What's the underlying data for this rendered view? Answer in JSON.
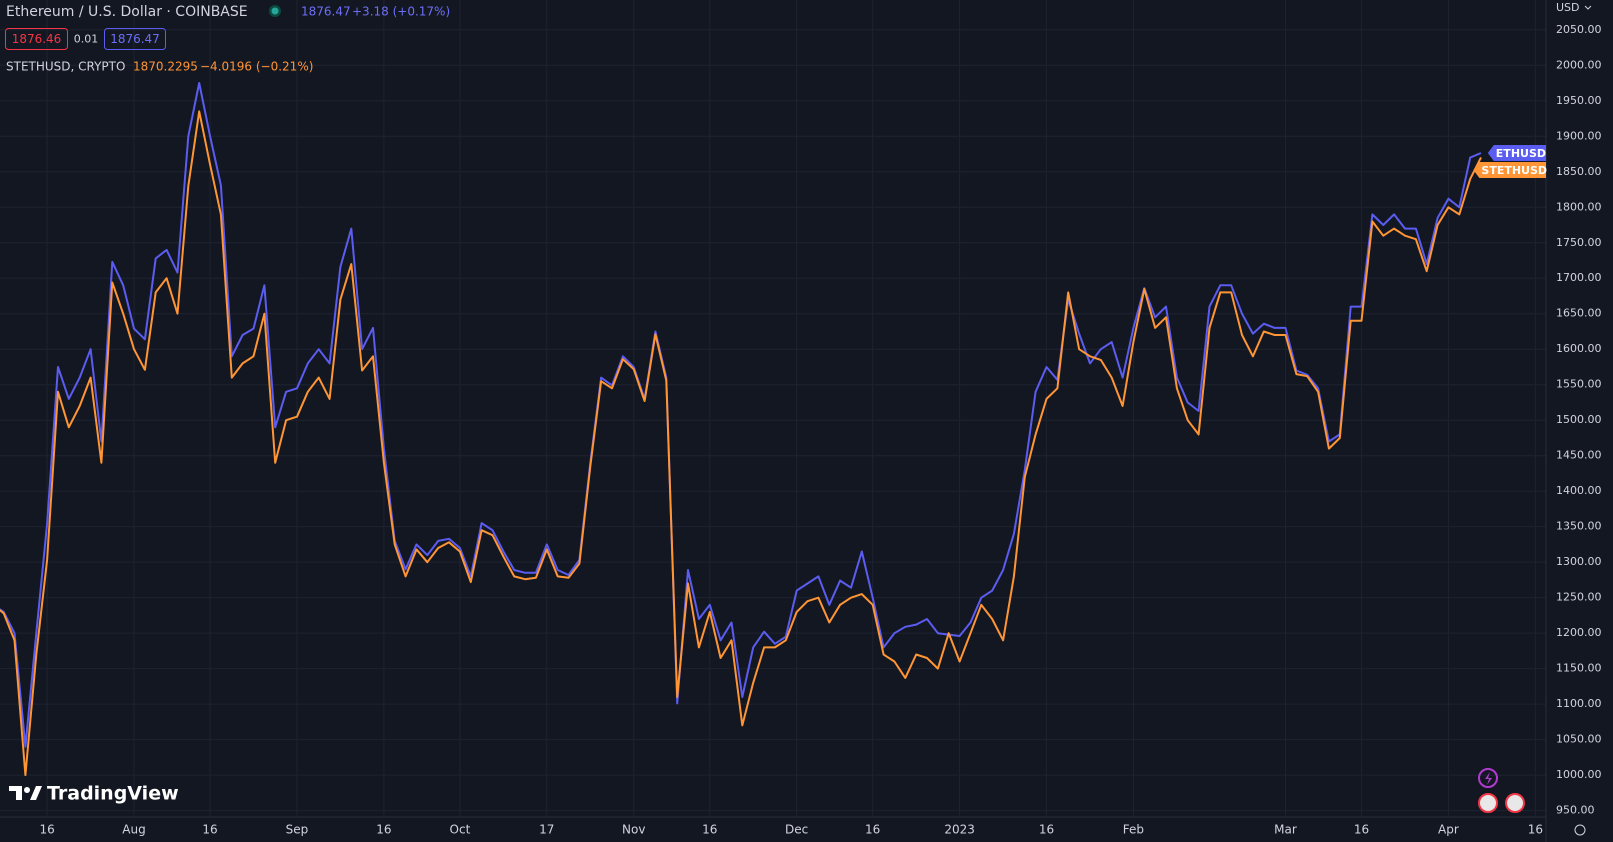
{
  "chart_data": {
    "type": "line",
    "title": "Ethereum / U.S. Dollar · COINBASE",
    "header": {
      "price": "1876.47",
      "change": "+3.18 (+0.17%)",
      "bid": "1876.46",
      "spread": "0.01",
      "ask": "1876.47"
    },
    "compare": {
      "label": "STETHUSD, CRYPTO",
      "price": "1870.2295",
      "change": "−4.0196 (−0.21%)"
    },
    "currency": "USD",
    "brand": "TradingView",
    "categories": [
      null,
      null,
      null,
      null,
      null,
      "16",
      null,
      null,
      null,
      null,
      null,
      null,
      null,
      "Aug",
      null,
      null,
      null,
      null,
      null,
      null,
      "16",
      null,
      null,
      null,
      null,
      null,
      null,
      null,
      "Sep",
      null,
      null,
      null,
      null,
      null,
      null,
      null,
      "16",
      null,
      null,
      null,
      null,
      null,
      null,
      "Oct",
      null,
      null,
      null,
      null,
      null,
      null,
      null,
      "17",
      null,
      null,
      null,
      null,
      null,
      null,
      null,
      "Nov",
      null,
      null,
      null,
      null,
      null,
      null,
      "16",
      null,
      null,
      null,
      null,
      null,
      null,
      null,
      "Dec",
      null,
      null,
      null,
      null,
      null,
      null,
      "16",
      null,
      null,
      null,
      null,
      null,
      null,
      null,
      "2023",
      null,
      null,
      null,
      null,
      null,
      null,
      null,
      "16",
      null,
      null,
      null,
      null,
      null,
      null,
      null,
      "Feb",
      null,
      null,
      null,
      null,
      null,
      null,
      null,
      null,
      null,
      null,
      null,
      null,
      null,
      "Mar",
      null,
      null,
      null,
      null,
      null,
      null,
      "16",
      null,
      null,
      null,
      null,
      null,
      null,
      null,
      "Apr",
      null,
      null,
      null,
      null,
      null,
      null,
      null,
      "16"
    ],
    "series": [
      {
        "name": "ETHUSD",
        "color": "#5b5cf0",
        "values": [
          1240,
          1230,
          1200,
          1040,
          1200,
          1354,
          1575,
          1530,
          1560,
          1600,
          1470,
          1723,
          1690,
          1629,
          1614,
          1728,
          1740,
          1708,
          1900,
          1975,
          1900,
          1831,
          1590,
          1620,
          1629,
          1690,
          1490,
          1540,
          1545,
          1580,
          1600,
          1580,
          1716,
          1770,
          1600,
          1630,
          1460,
          1330,
          1290,
          1325,
          1310,
          1330,
          1333,
          1320,
          1280,
          1355,
          1345,
          1315,
          1289,
          1285,
          1285,
          1325,
          1289,
          1282,
          1303,
          1440,
          1560,
          1549,
          1590,
          1575,
          1530,
          1625,
          1560,
          1101,
          1289,
          1220,
          1240,
          1190,
          1215,
          1110,
          1180,
          1202,
          1185,
          1195,
          1260,
          1270,
          1280,
          1240,
          1274,
          1264,
          1315,
          1250,
          1180,
          1200,
          1209,
          1212,
          1220,
          1200,
          1198,
          1196,
          1215,
          1250,
          1260,
          1289,
          1340,
          1430,
          1540,
          1575,
          1557,
          1670,
          1622,
          1580,
          1600,
          1610,
          1560,
          1630,
          1686,
          1645,
          1660,
          1560,
          1525,
          1513,
          1660,
          1690,
          1690,
          1650,
          1622,
          1636,
          1630,
          1630,
          1570,
          1564,
          1545,
          1470,
          1480,
          1660,
          1660,
          1790,
          1775,
          1790,
          1770,
          1770,
          1720,
          1785,
          1812,
          1800,
          1870,
          1876.47,
          null,
          null,
          null,
          null,
          null
        ]
      },
      {
        "name": "STETHUSD",
        "color": "#ff9534",
        "values": [
          1240,
          1228,
          1190,
          1000,
          1170,
          1303,
          1540,
          1490,
          1520,
          1560,
          1440,
          1694,
          1650,
          1600,
          1571,
          1680,
          1700,
          1650,
          1830,
          1935,
          1860,
          1790,
          1560,
          1580,
          1590,
          1650,
          1440,
          1500,
          1505,
          1540,
          1560,
          1530,
          1670,
          1720,
          1570,
          1590,
          1440,
          1325,
          1280,
          1318,
          1300,
          1320,
          1328,
          1315,
          1272,
          1345,
          1338,
          1308,
          1280,
          1276,
          1278,
          1318,
          1280,
          1278,
          1298,
          1435,
          1555,
          1545,
          1586,
          1572,
          1527,
          1621,
          1556,
          1110,
          1270,
          1180,
          1230,
          1165,
          1190,
          1070,
          1130,
          1180,
          1180,
          1190,
          1230,
          1245,
          1250,
          1215,
          1240,
          1250,
          1255,
          1240,
          1170,
          1160,
          1137,
          1170,
          1165,
          1150,
          1200,
          1160,
          1200,
          1240,
          1220,
          1190,
          1280,
          1420,
          1480,
          1530,
          1545,
          1680,
          1600,
          1590,
          1585,
          1560,
          1520,
          1610,
          1685,
          1630,
          1645,
          1545,
          1500,
          1480,
          1630,
          1680,
          1680,
          1620,
          1590,
          1625,
          1620,
          1620,
          1565,
          1562,
          1540,
          1460,
          1475,
          1640,
          1640,
          1780,
          1760,
          1770,
          1760,
          1755,
          1710,
          1775,
          1800,
          1790,
          1840,
          1870.2295,
          null,
          null,
          null,
          null,
          null
        ]
      }
    ],
    "ylim": [
      941,
      2092
    ],
    "yticks": [
      {
        "value": 950,
        "label": "950.00"
      },
      {
        "value": 1000,
        "label": "1000.00"
      },
      {
        "value": 1050,
        "label": "1050.00"
      },
      {
        "value": 1100,
        "label": "1100.00"
      },
      {
        "value": 1150,
        "label": "1150.00"
      },
      {
        "value": 1200,
        "label": "1200.00"
      },
      {
        "value": 1250,
        "label": "1250.00"
      },
      {
        "value": 1300,
        "label": "1300.00"
      },
      {
        "value": 1350,
        "label": "1350.00"
      },
      {
        "value": 1400,
        "label": "1400.00"
      },
      {
        "value": 1450,
        "label": "1450.00"
      },
      {
        "value": 1500,
        "label": "1500.00"
      },
      {
        "value": 1550,
        "label": "1550.00"
      },
      {
        "value": 1600,
        "label": "1600.00"
      },
      {
        "value": 1650,
        "label": "1650.00"
      },
      {
        "value": 1700,
        "label": "1700.00"
      },
      {
        "value": 1750,
        "label": "1750.00"
      },
      {
        "value": 1800,
        "label": "1800.00"
      },
      {
        "value": 1850,
        "label": "1850.00"
      },
      {
        "value": 1900,
        "label": "1900.00"
      },
      {
        "value": 1950,
        "label": "1950.00"
      },
      {
        "value": 2000,
        "label": "2000.00"
      },
      {
        "value": 2050,
        "label": "2050.00"
      }
    ],
    "grid": true
  }
}
